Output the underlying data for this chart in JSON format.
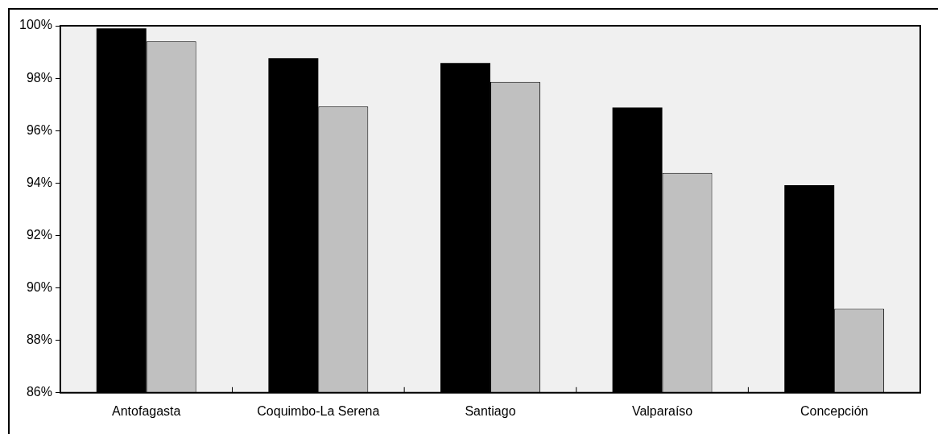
{
  "chart_data": {
    "type": "bar",
    "categories": [
      "Antofagasta",
      "Coquimbo-La Serena",
      "Santiago",
      "Valparaíso",
      "Concepción"
    ],
    "series": [
      {
        "color": "#000000",
        "values": [
          99.9,
          98.76,
          98.58,
          96.88,
          93.92
        ]
      },
      {
        "color": "#c0c0c0",
        "values": [
          99.41,
          96.92,
          97.86,
          94.39,
          89.2
        ]
      }
    ],
    "ylim": [
      86,
      100
    ],
    "yticks": [
      {
        "value": 86,
        "label": "86%"
      },
      {
        "value": 88,
        "label": "88%"
      },
      {
        "value": 90,
        "label": "90%"
      },
      {
        "value": 92,
        "label": "92%"
      },
      {
        "value": 94,
        "label": "94%"
      },
      {
        "value": 96,
        "label": "96%"
      },
      {
        "value": 98,
        "label": "98%"
      },
      {
        "value": 100,
        "label": "100%"
      }
    ],
    "legend": false
  }
}
